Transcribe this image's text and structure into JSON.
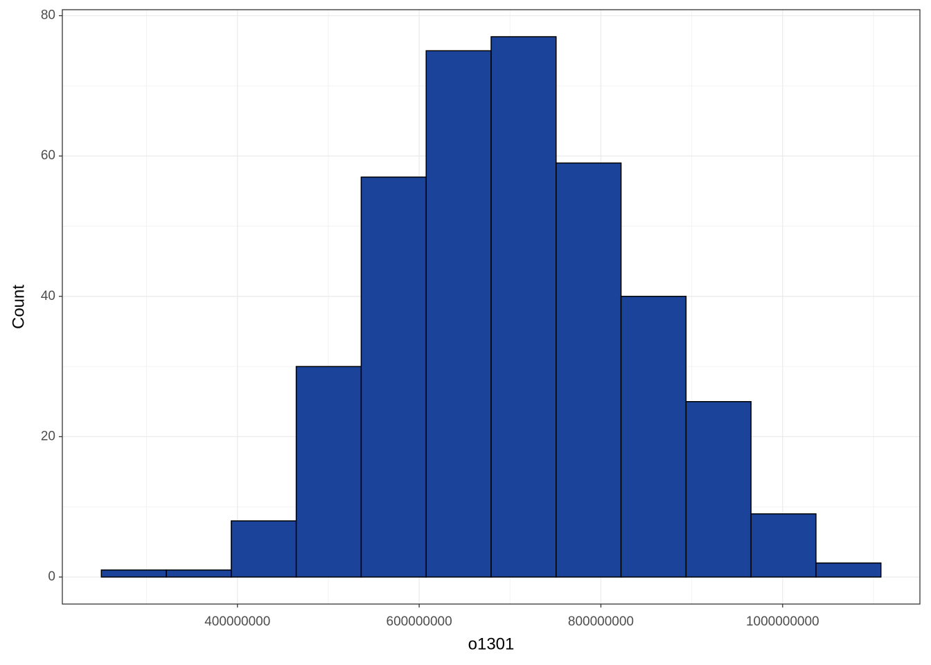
{
  "chart_data": {
    "type": "histogram",
    "x_label": "o1301",
    "y_label": "Count",
    "bins": [
      250200000,
      321700000,
      393200000,
      464700000,
      536200000,
      607700000,
      679200000,
      750700000,
      822200000,
      893700000,
      965200000,
      1036700000,
      1108200000
    ],
    "values": [
      1,
      1,
      8,
      30,
      57,
      75,
      77,
      59,
      40,
      25,
      9,
      2
    ],
    "color": "#1a4399",
    "xlim": [
      207300000,
      1151100000
    ],
    "xticks": [
      400000000,
      600000000,
      800000000,
      1000000000
    ],
    "ylim": [
      -3.85,
      80.85
    ],
    "yticks": [
      0,
      20,
      40,
      60,
      80
    ],
    "grid": true
  }
}
